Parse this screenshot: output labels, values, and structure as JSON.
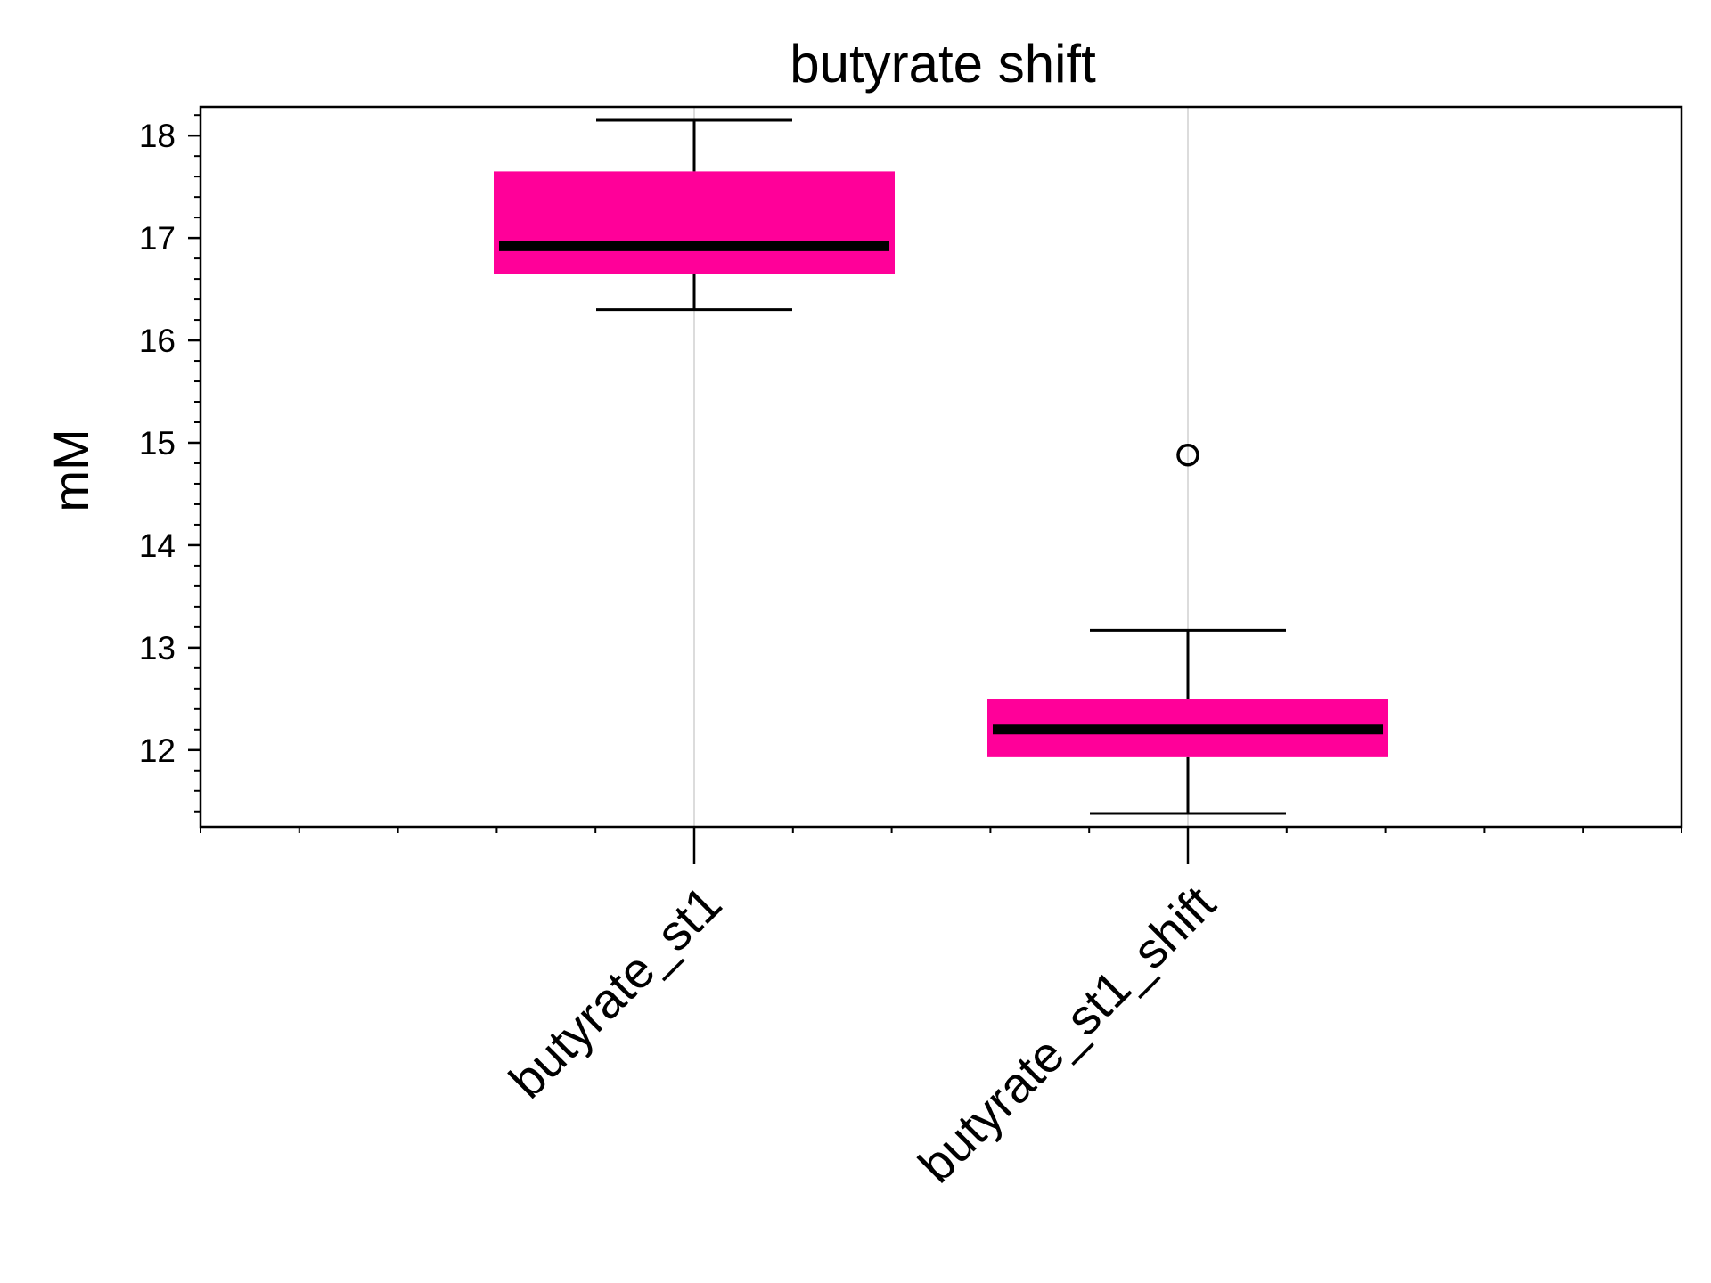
{
  "chart_data": {
    "type": "box",
    "title": "butyrate shift",
    "xlabel": "",
    "ylabel": "mM",
    "categories": [
      "butyrate_st1",
      "butyrate_st1_shift"
    ],
    "boxes": [
      {
        "category": "butyrate_st1",
        "whisker_low": 16.3,
        "q1": 16.65,
        "median": 16.92,
        "q3": 17.65,
        "whisker_high": 18.15,
        "outliers": []
      },
      {
        "category": "butyrate_st1_shift",
        "whisker_low": 11.38,
        "q1": 11.93,
        "median": 12.2,
        "q3": 12.5,
        "whisker_high": 13.17,
        "outliers": [
          14.88
        ]
      }
    ],
    "ylim": [
      11.25,
      18.28
    ],
    "yticks": [
      12,
      13,
      14,
      15,
      16,
      17,
      18
    ],
    "xgrid": true,
    "ygrid": false,
    "legend": "none",
    "colors": {
      "box_fill": "#ff0099",
      "median": "#000000",
      "whisker": "#000000",
      "grid": "#d0d0d0",
      "axis": "#000000"
    }
  }
}
